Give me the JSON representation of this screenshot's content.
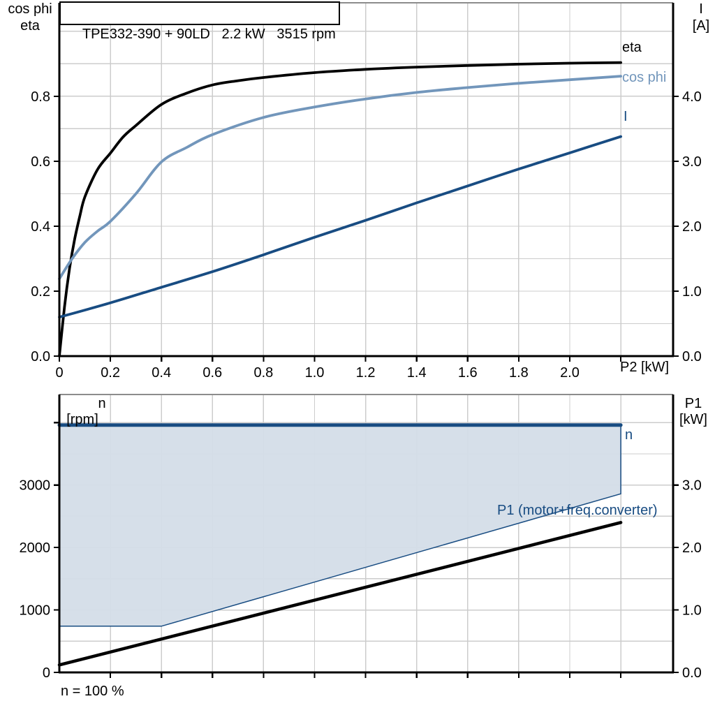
{
  "header": {
    "title": "TPE332-390 + 90LD   2.2 kW   3515 rpm"
  },
  "labels": {
    "left_axis_top_line1": "cos phi",
    "left_axis_top_line2": "eta",
    "right_axis_top_line1": "I",
    "right_axis_top_line2": "[A]",
    "x_axis_label": "P2 [kW]",
    "curve_eta": "eta",
    "curve_cos_phi": "cos phi",
    "curve_current": "I",
    "n_axis_line1": "n",
    "n_axis_line2": "[rpm]",
    "p1_axis_line1": "P1",
    "p1_axis_line2": "[kW]",
    "curve_n": "n",
    "curve_p1": "P1 (motor+freq.converter)",
    "note": "n = 100 %"
  },
  "colors": {
    "black": "#000000",
    "navy": "#184C82",
    "steel_blue": "#7296BB",
    "band_fill": "#D4DDE8",
    "grid": "#CCCCCC",
    "border_gray": "#8C8C8C",
    "background": "#FFFFFF"
  },
  "chart_data": [
    {
      "type": "line",
      "title": "TPE332-390 + 90LD   2.2 kW   3515 rpm",
      "xlabel": "P2 [kW]",
      "ylabel_left": "cos phi, eta",
      "ylabel_right": "I [A]",
      "xlim": [
        0,
        2.405
      ],
      "ylim_left": [
        0,
        1.088
      ],
      "ylim_right": [
        0,
        5.44
      ],
      "grid": {
        "x_step": 0.2,
        "x_max": 2.2,
        "y_step": 0.1,
        "y_max": 1.0
      },
      "x_ticks": {
        "values": [
          0,
          0.2,
          0.4,
          0.6,
          0.8,
          1.0,
          1.2,
          1.4,
          1.6,
          1.8,
          2.0,
          2.2
        ],
        "labels": [
          "0",
          "0.2",
          "0.4",
          "0.6",
          "0.8",
          "1.0",
          "1.2",
          "1.4",
          "1.6",
          "1.8",
          "2.0",
          ""
        ]
      },
      "y_ticks_left": {
        "values": [
          0,
          0.2,
          0.4,
          0.6,
          0.8
        ],
        "labels": [
          "0.0",
          "0.2",
          "0.4",
          "0.6",
          "0.8"
        ]
      },
      "y_ticks_right": {
        "values": [
          0,
          1,
          2,
          3,
          4
        ],
        "labels": [
          "0.0",
          "1.0",
          "2.0",
          "3.0",
          "4.0"
        ]
      },
      "legend_position": "right-of-curves",
      "series": [
        {
          "name": "eta",
          "axis": "left",
          "color": "#000000",
          "width": 3.8,
          "smooth": true,
          "points": [
            [
              0,
              0
            ],
            [
              0.02,
              0.15
            ],
            [
              0.04,
              0.27
            ],
            [
              0.06,
              0.36
            ],
            [
              0.08,
              0.43
            ],
            [
              0.1,
              0.49
            ],
            [
              0.15,
              0.575
            ],
            [
              0.2,
              0.625
            ],
            [
              0.25,
              0.675
            ],
            [
              0.3,
              0.71
            ],
            [
              0.4,
              0.775
            ],
            [
              0.5,
              0.81
            ],
            [
              0.6,
              0.835
            ],
            [
              0.7,
              0.848
            ],
            [
              0.8,
              0.858
            ],
            [
              1.0,
              0.873
            ],
            [
              1.2,
              0.883
            ],
            [
              1.4,
              0.89
            ],
            [
              1.6,
              0.895
            ],
            [
              1.8,
              0.899
            ],
            [
              2.0,
              0.902
            ],
            [
              2.2,
              0.904
            ]
          ]
        },
        {
          "name": "cos phi",
          "axis": "left",
          "color": "#7296BB",
          "width": 3.8,
          "smooth": true,
          "points": [
            [
              0,
              0.238
            ],
            [
              0.05,
              0.3
            ],
            [
              0.1,
              0.35
            ],
            [
              0.15,
              0.385
            ],
            [
              0.2,
              0.415
            ],
            [
              0.3,
              0.5
            ],
            [
              0.4,
              0.598
            ],
            [
              0.5,
              0.643
            ],
            [
              0.6,
              0.682
            ],
            [
              0.8,
              0.735
            ],
            [
              1.0,
              0.767
            ],
            [
              1.2,
              0.792
            ],
            [
              1.4,
              0.812
            ],
            [
              1.6,
              0.827
            ],
            [
              1.8,
              0.84
            ],
            [
              2.0,
              0.851
            ],
            [
              2.2,
              0.862
            ]
          ]
        },
        {
          "name": "I",
          "axis": "right",
          "color": "#184C82",
          "width": 3.8,
          "smooth": true,
          "points": [
            [
              0,
              0.6
            ],
            [
              0.2,
              0.82
            ],
            [
              0.4,
              1.06
            ],
            [
              0.6,
              1.3
            ],
            [
              0.8,
              1.56
            ],
            [
              1.0,
              1.83
            ],
            [
              1.2,
              2.09
            ],
            [
              1.4,
              2.36
            ],
            [
              1.6,
              2.62
            ],
            [
              1.8,
              2.88
            ],
            [
              2.0,
              3.13
            ],
            [
              2.2,
              3.38
            ]
          ]
        }
      ]
    },
    {
      "type": "line",
      "title": "",
      "xlabel": "",
      "ylabel_left": "n [rpm]",
      "ylabel_right": "P1 [kW]",
      "note": "n = 100 %",
      "xlim": [
        0,
        2.405
      ],
      "ylim_left": [
        0,
        4450
      ],
      "ylim_right": [
        0,
        4.45
      ],
      "grid": {
        "x_step": 0.2,
        "x_max": 2.2,
        "y_step": 500,
        "y_max": 4000
      },
      "x_ticks": {
        "values": [
          0.2,
          0.4,
          0.6,
          0.8,
          1.0,
          1.2,
          1.4,
          1.6,
          1.8,
          2.0,
          2.2
        ],
        "labels": [
          "",
          "",
          "",
          "",
          "",
          "",
          "",
          "",
          "",
          "",
          ""
        ]
      },
      "y_ticks_left": {
        "values": [
          0,
          1000,
          2000,
          3000,
          4000
        ],
        "labels": [
          "0",
          "1000",
          "2000",
          "3000",
          ""
        ]
      },
      "y_ticks_right": {
        "values": [
          0,
          1,
          2,
          3
        ],
        "labels": [
          "0.0",
          "1.0",
          "2.0",
          "3.0"
        ]
      },
      "band": {
        "name": "speed-control-range",
        "fill": "#D4DDE8",
        "stroke": "#184C82",
        "stroke_width": 1.5,
        "upper": [
          [
            0,
            3960
          ],
          [
            2.2,
            3960
          ]
        ],
        "lower": [
          [
            0,
            740
          ],
          [
            0.4,
            740
          ],
          [
            2.2,
            2860
          ]
        ]
      },
      "series": [
        {
          "name": "P1 (motor+freq.converter)",
          "axis": "right",
          "color": "#000000",
          "width": 4.5,
          "smooth": false,
          "points": [
            [
              0,
              0.12
            ],
            [
              2.2,
              2.4
            ]
          ]
        },
        {
          "name": "n",
          "axis": "left",
          "color": "#184C82",
          "width": 5,
          "smooth": false,
          "points": [
            [
              0,
              3960
            ],
            [
              2.2,
              3960
            ]
          ]
        }
      ]
    }
  ]
}
